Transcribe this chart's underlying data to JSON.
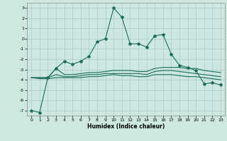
{
  "title": "",
  "xlabel": "Humidex (Indice chaleur)",
  "background_color": "#cce8e0",
  "grid_color": "#aacccc",
  "line_color": "#1a6b5a",
  "xlim": [
    -0.5,
    23.5
  ],
  "ylim": [
    -7.5,
    3.5
  ],
  "yticks": [
    -7,
    -6,
    -5,
    -4,
    -3,
    -2,
    -1,
    0,
    1,
    2,
    3
  ],
  "xticks": [
    0,
    1,
    2,
    3,
    4,
    5,
    6,
    7,
    8,
    9,
    10,
    11,
    12,
    13,
    14,
    15,
    16,
    17,
    18,
    19,
    20,
    21,
    22,
    23
  ],
  "lines": [
    {
      "x": [
        0,
        1,
        2,
        3,
        4,
        5,
        6,
        7,
        8,
        9,
        10,
        11,
        12,
        13,
        14,
        15,
        16,
        17,
        18,
        19,
        20,
        21,
        22,
        23
      ],
      "y": [
        -7.0,
        -7.2,
        -3.8,
        -2.9,
        -2.2,
        -2.5,
        -2.2,
        -1.7,
        -0.3,
        0.0,
        3.0,
        2.1,
        -0.5,
        -0.5,
        -0.8,
        0.3,
        0.4,
        -1.5,
        -2.6,
        -2.8,
        -3.1,
        -4.4,
        -4.3,
        -4.5
      ],
      "with_markers": true
    },
    {
      "x": [
        0,
        1,
        2,
        3,
        4,
        5,
        6,
        7,
        8,
        9,
        10,
        11,
        12,
        13,
        14,
        15,
        16,
        17,
        18,
        19,
        20,
        21,
        22,
        23
      ],
      "y": [
        -3.8,
        -3.8,
        -3.8,
        -2.9,
        -3.5,
        -3.5,
        -3.4,
        -3.3,
        -3.3,
        -3.2,
        -3.1,
        -3.1,
        -3.1,
        -3.2,
        -3.2,
        -2.9,
        -2.8,
        -2.8,
        -2.8,
        -2.9,
        -2.9,
        -3.1,
        -3.2,
        -3.3
      ],
      "with_markers": false
    },
    {
      "x": [
        0,
        1,
        2,
        3,
        4,
        5,
        6,
        7,
        8,
        9,
        10,
        11,
        12,
        13,
        14,
        15,
        16,
        17,
        18,
        19,
        20,
        21,
        22,
        23
      ],
      "y": [
        -3.8,
        -3.8,
        -3.8,
        -3.5,
        -3.7,
        -3.7,
        -3.6,
        -3.5,
        -3.5,
        -3.4,
        -3.4,
        -3.4,
        -3.4,
        -3.4,
        -3.5,
        -3.2,
        -3.1,
        -3.1,
        -3.2,
        -3.3,
        -3.4,
        -3.5,
        -3.6,
        -3.7
      ],
      "with_markers": false
    },
    {
      "x": [
        0,
        1,
        2,
        3,
        4,
        5,
        6,
        7,
        8,
        9,
        10,
        11,
        12,
        13,
        14,
        15,
        16,
        17,
        18,
        19,
        20,
        21,
        22,
        23
      ],
      "y": [
        -3.8,
        -3.9,
        -3.9,
        -3.8,
        -3.8,
        -3.8,
        -3.8,
        -3.7,
        -3.7,
        -3.6,
        -3.5,
        -3.6,
        -3.6,
        -3.7,
        -3.7,
        -3.5,
        -3.5,
        -3.5,
        -3.6,
        -3.7,
        -3.7,
        -3.8,
        -3.9,
        -4.0
      ],
      "with_markers": false
    }
  ]
}
